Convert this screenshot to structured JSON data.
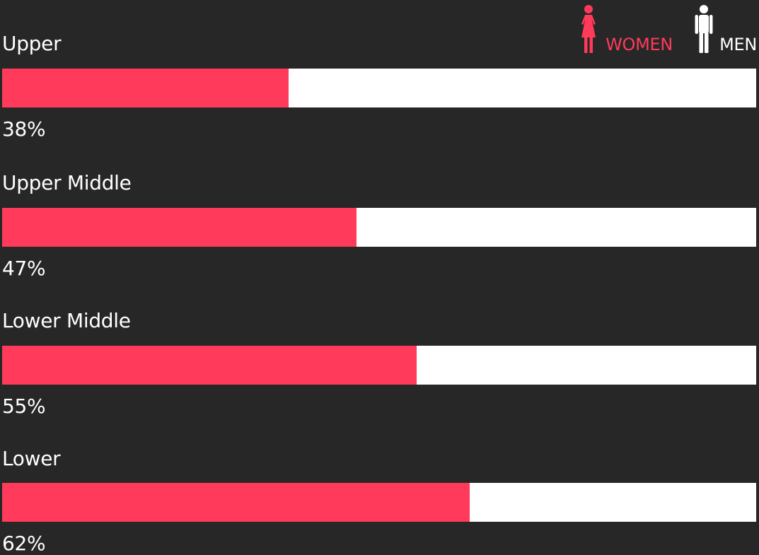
{
  "legend": {
    "women": {
      "label": "WOMEN",
      "icon": "woman-icon",
      "color": "#ff3a5a"
    },
    "men": {
      "label": "MEN",
      "icon": "man-icon",
      "color": "#ffffff"
    }
  },
  "colors": {
    "background": "#272727",
    "women": "#ff3a5a",
    "men": "#ffffff"
  },
  "chart_data": {
    "type": "bar",
    "orientation": "horizontal",
    "stacked": true,
    "categories": [
      "Upper",
      "Upper Middle",
      "Lower Middle",
      "Lower"
    ],
    "series": [
      {
        "name": "WOMEN",
        "values": [
          38,
          47,
          55,
          62
        ]
      },
      {
        "name": "MEN",
        "values": [
          62,
          53,
          45,
          38
        ]
      }
    ],
    "value_labels": [
      "38%",
      "47%",
      "55%",
      "62%"
    ],
    "xlim": [
      0,
      100
    ],
    "grid": false,
    "legend_position": "top-right"
  }
}
